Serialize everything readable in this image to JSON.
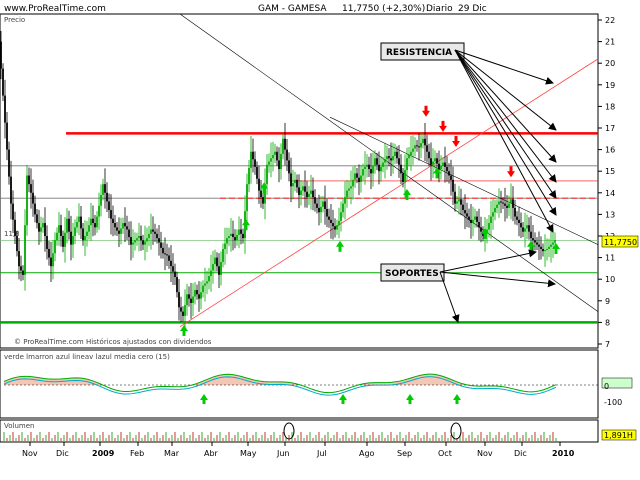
{
  "header": {
    "site": "www.ProRealTime.com",
    "title": "GAM - GAMESA",
    "price": "11,7750 (+2,30%)",
    "period": "Diario",
    "date": "29 Dic",
    "panel_label": "Precio",
    "watermark": "© ProRealTime.com Históricos ajustados con dividendos",
    "last_price_badge": "11,7750",
    "left_level": "11,8",
    "osc_legend": "verde lmarron azul lineav lazul media cero (15)",
    "volume_label": "Volumen",
    "volume_badge": "1,891H"
  },
  "annotations": {
    "resistencia": "RESISTENCIA",
    "soportes": "SOPORTES"
  },
  "colors": {
    "up_candle": "#00aa00",
    "down_candle": "#000000",
    "resistance": "#ff0000",
    "support": "#00aa00",
    "trendline": "#ff4040",
    "up_arrow": "#00cc00",
    "down_arrow": "#ff0000",
    "osc_fill": "#f4c6b4",
    "osc_line": "#00aa00",
    "osc_blue": "#00aacc"
  },
  "chart_data": {
    "type": "candlestick",
    "title": "GAM - GAMESA",
    "ylim": [
      7,
      22
    ],
    "y_ticks": [
      7,
      8,
      9,
      10,
      11,
      12,
      13,
      14,
      15,
      16,
      17,
      18,
      19,
      20,
      21,
      22
    ],
    "x_ticks": [
      "Nov",
      "Dic",
      "2009",
      "Feb",
      "Mar",
      "Abr",
      "May",
      "Jun",
      "Jul",
      "Ago",
      "Sep",
      "Oct",
      "Nov",
      "Dic",
      "2010"
    ],
    "last_price": 11.775,
    "change_pct": 2.3,
    "close_series": [
      [
        0,
        21
      ],
      [
        4,
        18.5
      ],
      [
        8,
        16
      ],
      [
        12,
        13.5
      ],
      [
        16,
        12
      ],
      [
        20,
        10.6
      ],
      [
        24,
        10.2
      ],
      [
        28,
        14.8
      ],
      [
        32,
        14
      ],
      [
        36,
        13
      ],
      [
        40,
        12.2
      ],
      [
        44,
        12.6
      ],
      [
        48,
        11.4
      ],
      [
        52,
        10.6
      ],
      [
        56,
        11.8
      ],
      [
        60,
        12.5
      ],
      [
        64,
        11.5
      ],
      [
        68,
        12.8
      ],
      [
        72,
        11.6
      ],
      [
        76,
        12.4
      ],
      [
        80,
        12.9
      ],
      [
        84,
        11.8
      ],
      [
        88,
        12.2
      ],
      [
        92,
        12.8
      ],
      [
        96,
        12.4
      ],
      [
        100,
        13.4
      ],
      [
        104,
        14.4
      ],
      [
        108,
        13.6
      ],
      [
        112,
        12.8
      ],
      [
        116,
        12.4
      ],
      [
        120,
        12.1
      ],
      [
        124,
        12.6
      ],
      [
        128,
        12.3
      ],
      [
        132,
        11.6
      ],
      [
        136,
        11.8
      ],
      [
        140,
        12
      ],
      [
        144,
        11.6
      ],
      [
        148,
        11.9
      ],
      [
        152,
        12.3
      ],
      [
        156,
        12.1
      ],
      [
        160,
        11.7
      ],
      [
        164,
        11.2
      ],
      [
        168,
        11.1
      ],
      [
        172,
        10.6
      ],
      [
        176,
        10.1
      ],
      [
        180,
        8.7
      ],
      [
        184,
        8.3
      ],
      [
        188,
        9.3
      ],
      [
        192,
        8.9
      ],
      [
        196,
        9.5
      ],
      [
        200,
        9.1
      ],
      [
        204,
        9.7
      ],
      [
        208,
        9.9
      ],
      [
        212,
        10.4
      ],
      [
        216,
        11
      ],
      [
        220,
        10.2
      ],
      [
        224,
        11.4
      ],
      [
        228,
        11.9
      ],
      [
        232,
        12.1
      ],
      [
        236,
        11.8
      ],
      [
        240,
        12.3
      ],
      [
        244,
        11.9
      ],
      [
        248,
        14.4
      ],
      [
        252,
        15.9
      ],
      [
        256,
        15.2
      ],
      [
        260,
        14.1
      ],
      [
        264,
        13.5
      ],
      [
        268,
        15.3
      ],
      [
        272,
        15.6
      ],
      [
        276,
        15.9
      ],
      [
        280,
        15.1
      ],
      [
        284,
        16.5
      ],
      [
        288,
        15.5
      ],
      [
        292,
        14.3
      ],
      [
        296,
        14.6
      ],
      [
        300,
        13.9
      ],
      [
        304,
        14.3
      ],
      [
        308,
        13.8
      ],
      [
        312,
        14.1
      ],
      [
        316,
        13.5
      ],
      [
        320,
        13.1
      ],
      [
        324,
        13.6
      ],
      [
        328,
        12.9
      ],
      [
        332,
        12.6
      ],
      [
        336,
        12.3
      ],
      [
        340,
        12.7
      ],
      [
        344,
        13.5
      ],
      [
        348,
        14.1
      ],
      [
        352,
        14.3
      ],
      [
        356,
        14.9
      ],
      [
        360,
        14.5
      ],
      [
        364,
        15.1
      ],
      [
        368,
        15.3
      ],
      [
        372,
        14.9
      ],
      [
        376,
        15.6
      ],
      [
        380,
        15
      ],
      [
        384,
        15.4
      ],
      [
        388,
        15.7
      ],
      [
        392,
        15.5
      ],
      [
        396,
        15.9
      ],
      [
        400,
        15.3
      ],
      [
        404,
        14.5
      ],
      [
        408,
        15.6
      ],
      [
        412,
        15.9
      ],
      [
        416,
        16.2
      ],
      [
        420,
        16.1
      ],
      [
        424,
        16.5
      ],
      [
        428,
        15.9
      ],
      [
        432,
        15.3
      ],
      [
        436,
        15.6
      ],
      [
        440,
        15.1
      ],
      [
        444,
        15.4
      ],
      [
        448,
        15
      ],
      [
        452,
        14.6
      ],
      [
        456,
        13.5
      ],
      [
        460,
        13.7
      ],
      [
        464,
        13.2
      ],
      [
        468,
        12.9
      ],
      [
        472,
        12.6
      ],
      [
        476,
        12.9
      ],
      [
        480,
        12.4
      ],
      [
        484,
        12
      ],
      [
        488,
        12.3
      ],
      [
        492,
        12.9
      ],
      [
        496,
        13.3
      ],
      [
        500,
        13.6
      ],
      [
        504,
        13.5
      ],
      [
        508,
        13.3
      ],
      [
        512,
        13.7
      ],
      [
        516,
        12.9
      ],
      [
        520,
        12.6
      ],
      [
        524,
        12.2
      ],
      [
        528,
        12.5
      ],
      [
        532,
        11.9
      ],
      [
        536,
        11.7
      ],
      [
        540,
        11.5
      ],
      [
        544,
        11.3
      ],
      [
        548,
        11.4
      ],
      [
        552,
        11.6
      ],
      [
        556,
        11.8
      ]
    ],
    "resistance_levels": [
      16.75,
      15.25,
      13.75
    ],
    "support_levels": [
      10.3,
      8.0
    ],
    "dashed_level": 13.75,
    "oscillator": {
      "ylim": [
        -100,
        100
      ],
      "ticks": [
        0,
        -100
      ]
    }
  }
}
